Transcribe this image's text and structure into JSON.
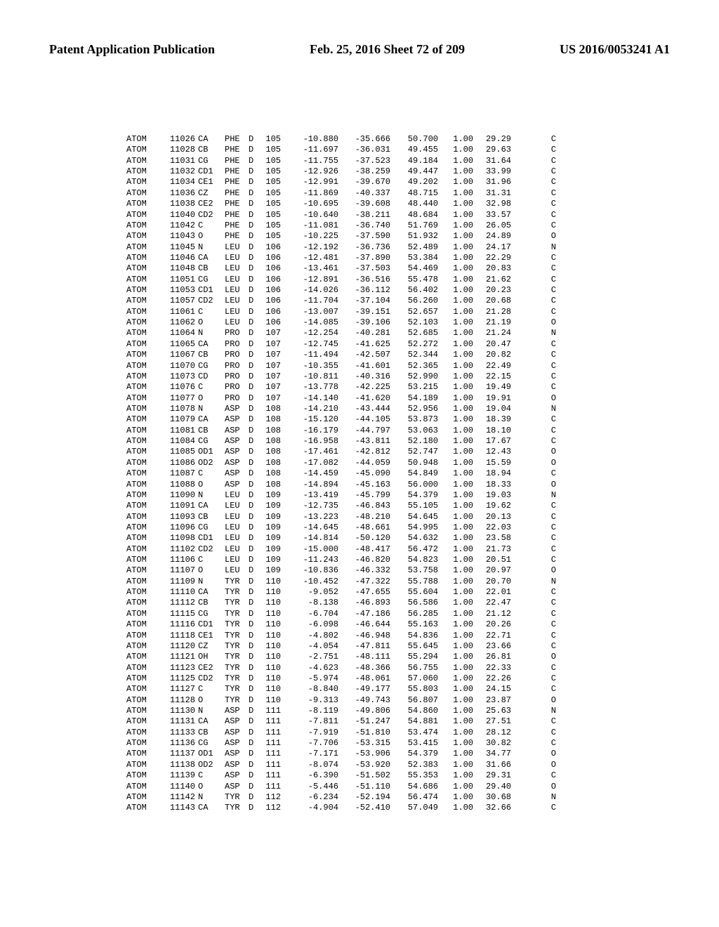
{
  "header": {
    "left": "Patent Application Publication",
    "center": "Feb. 25, 2016  Sheet 72 of 209",
    "right": "US 2016/0053241 A1"
  },
  "records": [
    {
      "rec": "ATOM",
      "ser": 11026,
      "name": "CA",
      "res": "PHE",
      "ch": "D",
      "seq": 105,
      "x": -10.88,
      "y": -35.666,
      "z": 50.7,
      "occ": 1.0,
      "bf": 29.29,
      "el": "C"
    },
    {
      "rec": "ATOM",
      "ser": 11028,
      "name": "CB",
      "res": "PHE",
      "ch": "D",
      "seq": 105,
      "x": -11.697,
      "y": -36.031,
      "z": 49.455,
      "occ": 1.0,
      "bf": 29.63,
      "el": "C"
    },
    {
      "rec": "ATOM",
      "ser": 11031,
      "name": "CG",
      "res": "PHE",
      "ch": "D",
      "seq": 105,
      "x": -11.755,
      "y": -37.523,
      "z": 49.184,
      "occ": 1.0,
      "bf": 31.64,
      "el": "C"
    },
    {
      "rec": "ATOM",
      "ser": 11032,
      "name": "CD1",
      "res": "PHE",
      "ch": "D",
      "seq": 105,
      "x": -12.926,
      "y": -38.259,
      "z": 49.447,
      "occ": 1.0,
      "bf": 33.99,
      "el": "C"
    },
    {
      "rec": "ATOM",
      "ser": 11034,
      "name": "CE1",
      "res": "PHE",
      "ch": "D",
      "seq": 105,
      "x": -12.991,
      "y": -39.67,
      "z": 49.202,
      "occ": 1.0,
      "bf": 31.96,
      "el": "C"
    },
    {
      "rec": "ATOM",
      "ser": 11036,
      "name": "CZ",
      "res": "PHE",
      "ch": "D",
      "seq": 105,
      "x": -11.869,
      "y": -40.337,
      "z": 48.715,
      "occ": 1.0,
      "bf": 31.31,
      "el": "C"
    },
    {
      "rec": "ATOM",
      "ser": 11038,
      "name": "CE2",
      "res": "PHE",
      "ch": "D",
      "seq": 105,
      "x": -10.695,
      "y": -39.608,
      "z": 48.44,
      "occ": 1.0,
      "bf": 32.98,
      "el": "C"
    },
    {
      "rec": "ATOM",
      "ser": 11040,
      "name": "CD2",
      "res": "PHE",
      "ch": "D",
      "seq": 105,
      "x": -10.64,
      "y": -38.211,
      "z": 48.684,
      "occ": 1.0,
      "bf": 33.57,
      "el": "C"
    },
    {
      "rec": "ATOM",
      "ser": 11042,
      "name": "C",
      "res": "PHE",
      "ch": "D",
      "seq": 105,
      "x": -11.081,
      "y": -36.74,
      "z": 51.769,
      "occ": 1.0,
      "bf": 26.05,
      "el": "C"
    },
    {
      "rec": "ATOM",
      "ser": 11043,
      "name": "O",
      "res": "PHE",
      "ch": "D",
      "seq": 105,
      "x": -10.225,
      "y": -37.59,
      "z": 51.932,
      "occ": 1.0,
      "bf": 24.89,
      "el": "O"
    },
    {
      "rec": "ATOM",
      "ser": 11045,
      "name": "N",
      "res": "LEU",
      "ch": "D",
      "seq": 106,
      "x": -12.192,
      "y": -36.736,
      "z": 52.489,
      "occ": 1.0,
      "bf": 24.17,
      "el": "N"
    },
    {
      "rec": "ATOM",
      "ser": 11046,
      "name": "CA",
      "res": "LEU",
      "ch": "D",
      "seq": 106,
      "x": -12.481,
      "y": -37.89,
      "z": 53.384,
      "occ": 1.0,
      "bf": 22.29,
      "el": "C"
    },
    {
      "rec": "ATOM",
      "ser": 11048,
      "name": "CB",
      "res": "LEU",
      "ch": "D",
      "seq": 106,
      "x": -13.461,
      "y": -37.503,
      "z": 54.469,
      "occ": 1.0,
      "bf": 20.83,
      "el": "C"
    },
    {
      "rec": "ATOM",
      "ser": 11051,
      "name": "CG",
      "res": "LEU",
      "ch": "D",
      "seq": 106,
      "x": -12.891,
      "y": -36.516,
      "z": 55.478,
      "occ": 1.0,
      "bf": 21.62,
      "el": "C"
    },
    {
      "rec": "ATOM",
      "ser": 11053,
      "name": "CD1",
      "res": "LEU",
      "ch": "D",
      "seq": 106,
      "x": -14.026,
      "y": -36.112,
      "z": 56.402,
      "occ": 1.0,
      "bf": 20.23,
      "el": "C"
    },
    {
      "rec": "ATOM",
      "ser": 11057,
      "name": "CD2",
      "res": "LEU",
      "ch": "D",
      "seq": 106,
      "x": -11.704,
      "y": -37.104,
      "z": 56.26,
      "occ": 1.0,
      "bf": 20.68,
      "el": "C"
    },
    {
      "rec": "ATOM",
      "ser": 11061,
      "name": "C",
      "res": "LEU",
      "ch": "D",
      "seq": 106,
      "x": -13.007,
      "y": -39.151,
      "z": 52.657,
      "occ": 1.0,
      "bf": 21.28,
      "el": "C"
    },
    {
      "rec": "ATOM",
      "ser": 11062,
      "name": "O",
      "res": "LEU",
      "ch": "D",
      "seq": 106,
      "x": -14.085,
      "y": -39.106,
      "z": 52.103,
      "occ": 1.0,
      "bf": 21.19,
      "el": "O"
    },
    {
      "rec": "ATOM",
      "ser": 11064,
      "name": "N",
      "res": "PRO",
      "ch": "D",
      "seq": 107,
      "x": -12.254,
      "y": -40.281,
      "z": 52.685,
      "occ": 1.0,
      "bf": 21.24,
      "el": "N"
    },
    {
      "rec": "ATOM",
      "ser": 11065,
      "name": "CA",
      "res": "PRO",
      "ch": "D",
      "seq": 107,
      "x": -12.745,
      "y": -41.625,
      "z": 52.272,
      "occ": 1.0,
      "bf": 20.47,
      "el": "C"
    },
    {
      "rec": "ATOM",
      "ser": 11067,
      "name": "CB",
      "res": "PRO",
      "ch": "D",
      "seq": 107,
      "x": -11.494,
      "y": -42.507,
      "z": 52.344,
      "occ": 1.0,
      "bf": 20.82,
      "el": "C"
    },
    {
      "rec": "ATOM",
      "ser": 11070,
      "name": "CG",
      "res": "PRO",
      "ch": "D",
      "seq": 107,
      "x": -10.355,
      "y": -41.601,
      "z": 52.365,
      "occ": 1.0,
      "bf": 22.49,
      "el": "C"
    },
    {
      "rec": "ATOM",
      "ser": 11073,
      "name": "CD",
      "res": "PRO",
      "ch": "D",
      "seq": 107,
      "x": -10.811,
      "y": -40.316,
      "z": 52.99,
      "occ": 1.0,
      "bf": 22.15,
      "el": "C"
    },
    {
      "rec": "ATOM",
      "ser": 11076,
      "name": "C",
      "res": "PRO",
      "ch": "D",
      "seq": 107,
      "x": -13.778,
      "y": -42.225,
      "z": 53.215,
      "occ": 1.0,
      "bf": 19.49,
      "el": "C"
    },
    {
      "rec": "ATOM",
      "ser": 11077,
      "name": "O",
      "res": "PRO",
      "ch": "D",
      "seq": 107,
      "x": -14.14,
      "y": -41.62,
      "z": 54.189,
      "occ": 1.0,
      "bf": 19.91,
      "el": "O"
    },
    {
      "rec": "ATOM",
      "ser": 11078,
      "name": "N",
      "res": "ASP",
      "ch": "D",
      "seq": 108,
      "x": -14.21,
      "y": -43.444,
      "z": 52.956,
      "occ": 1.0,
      "bf": 19.04,
      "el": "N"
    },
    {
      "rec": "ATOM",
      "ser": 11079,
      "name": "CA",
      "res": "ASP",
      "ch": "D",
      "seq": 108,
      "x": -15.12,
      "y": -44.105,
      "z": 53.873,
      "occ": 1.0,
      "bf": 18.39,
      "el": "C"
    },
    {
      "rec": "ATOM",
      "ser": 11081,
      "name": "CB",
      "res": "ASP",
      "ch": "D",
      "seq": 108,
      "x": -16.179,
      "y": -44.797,
      "z": 53.063,
      "occ": 1.0,
      "bf": 18.1,
      "el": "C"
    },
    {
      "rec": "ATOM",
      "ser": 11084,
      "name": "CG",
      "res": "ASP",
      "ch": "D",
      "seq": 108,
      "x": -16.958,
      "y": -43.811,
      "z": 52.18,
      "occ": 1.0,
      "bf": 17.67,
      "el": "C"
    },
    {
      "rec": "ATOM",
      "ser": 11085,
      "name": "OD1",
      "res": "ASP",
      "ch": "D",
      "seq": 108,
      "x": -17.461,
      "y": -42.812,
      "z": 52.747,
      "occ": 1.0,
      "bf": 12.43,
      "el": "O"
    },
    {
      "rec": "ATOM",
      "ser": 11086,
      "name": "OD2",
      "res": "ASP",
      "ch": "D",
      "seq": 108,
      "x": -17.082,
      "y": -44.059,
      "z": 50.948,
      "occ": 1.0,
      "bf": 15.59,
      "el": "O"
    },
    {
      "rec": "ATOM",
      "ser": 11087,
      "name": "C",
      "res": "ASP",
      "ch": "D",
      "seq": 108,
      "x": -14.459,
      "y": -45.09,
      "z": 54.849,
      "occ": 1.0,
      "bf": 18.94,
      "el": "C"
    },
    {
      "rec": "ATOM",
      "ser": 11088,
      "name": "O",
      "res": "ASP",
      "ch": "D",
      "seq": 108,
      "x": -14.894,
      "y": -45.163,
      "z": 56.0,
      "occ": 1.0,
      "bf": 18.33,
      "el": "O"
    },
    {
      "rec": "ATOM",
      "ser": 11090,
      "name": "N",
      "res": "LEU",
      "ch": "D",
      "seq": 109,
      "x": -13.419,
      "y": -45.799,
      "z": 54.379,
      "occ": 1.0,
      "bf": 19.03,
      "el": "N"
    },
    {
      "rec": "ATOM",
      "ser": 11091,
      "name": "CA",
      "res": "LEU",
      "ch": "D",
      "seq": 109,
      "x": -12.735,
      "y": -46.843,
      "z": 55.105,
      "occ": 1.0,
      "bf": 19.62,
      "el": "C"
    },
    {
      "rec": "ATOM",
      "ser": 11093,
      "name": "CB",
      "res": "LEU",
      "ch": "D",
      "seq": 109,
      "x": -13.223,
      "y": -48.21,
      "z": 54.645,
      "occ": 1.0,
      "bf": 20.13,
      "el": "C"
    },
    {
      "rec": "ATOM",
      "ser": 11096,
      "name": "CG",
      "res": "LEU",
      "ch": "D",
      "seq": 109,
      "x": -14.645,
      "y": -48.661,
      "z": 54.995,
      "occ": 1.0,
      "bf": 22.03,
      "el": "C"
    },
    {
      "rec": "ATOM",
      "ser": 11098,
      "name": "CD1",
      "res": "LEU",
      "ch": "D",
      "seq": 109,
      "x": -14.814,
      "y": -50.12,
      "z": 54.632,
      "occ": 1.0,
      "bf": 23.58,
      "el": "C"
    },
    {
      "rec": "ATOM",
      "ser": 11102,
      "name": "CD2",
      "res": "LEU",
      "ch": "D",
      "seq": 109,
      "x": -15.0,
      "y": -48.417,
      "z": 56.472,
      "occ": 1.0,
      "bf": 21.73,
      "el": "C"
    },
    {
      "rec": "ATOM",
      "ser": 11106,
      "name": "C",
      "res": "LEU",
      "ch": "D",
      "seq": 109,
      "x": -11.243,
      "y": -46.82,
      "z": 54.823,
      "occ": 1.0,
      "bf": 20.51,
      "el": "C"
    },
    {
      "rec": "ATOM",
      "ser": 11107,
      "name": "O",
      "res": "LEU",
      "ch": "D",
      "seq": 109,
      "x": -10.836,
      "y": -46.332,
      "z": 53.758,
      "occ": 1.0,
      "bf": 20.97,
      "el": "O"
    },
    {
      "rec": "ATOM",
      "ser": 11109,
      "name": "N",
      "res": "TYR",
      "ch": "D",
      "seq": 110,
      "x": -10.452,
      "y": -47.322,
      "z": 55.788,
      "occ": 1.0,
      "bf": 20.7,
      "el": "N"
    },
    {
      "rec": "ATOM",
      "ser": 11110,
      "name": "CA",
      "res": "TYR",
      "ch": "D",
      "seq": 110,
      "x": -9.052,
      "y": -47.655,
      "z": 55.604,
      "occ": 1.0,
      "bf": 22.01,
      "el": "C"
    },
    {
      "rec": "ATOM",
      "ser": 11112,
      "name": "CB",
      "res": "TYR",
      "ch": "D",
      "seq": 110,
      "x": -8.138,
      "y": -46.893,
      "z": 56.586,
      "occ": 1.0,
      "bf": 22.47,
      "el": "C"
    },
    {
      "rec": "ATOM",
      "ser": 11115,
      "name": "CG",
      "res": "TYR",
      "ch": "D",
      "seq": 110,
      "x": -6.704,
      "y": -47.186,
      "z": 56.285,
      "occ": 1.0,
      "bf": 21.12,
      "el": "C"
    },
    {
      "rec": "ATOM",
      "ser": 11116,
      "name": "CD1",
      "res": "TYR",
      "ch": "D",
      "seq": 110,
      "x": -6.098,
      "y": -46.644,
      "z": 55.163,
      "occ": 1.0,
      "bf": 20.26,
      "el": "C"
    },
    {
      "rec": "ATOM",
      "ser": 11118,
      "name": "CE1",
      "res": "TYR",
      "ch": "D",
      "seq": 110,
      "x": -4.802,
      "y": -46.948,
      "z": 54.836,
      "occ": 1.0,
      "bf": 22.71,
      "el": "C"
    },
    {
      "rec": "ATOM",
      "ser": 11120,
      "name": "CZ",
      "res": "TYR",
      "ch": "D",
      "seq": 110,
      "x": -4.054,
      "y": -47.811,
      "z": 55.645,
      "occ": 1.0,
      "bf": 23.66,
      "el": "C"
    },
    {
      "rec": "ATOM",
      "ser": 11121,
      "name": "OH",
      "res": "TYR",
      "ch": "D",
      "seq": 110,
      "x": -2.751,
      "y": -48.111,
      "z": 55.294,
      "occ": 1.0,
      "bf": 26.81,
      "el": "O"
    },
    {
      "rec": "ATOM",
      "ser": 11123,
      "name": "CE2",
      "res": "TYR",
      "ch": "D",
      "seq": 110,
      "x": -4.623,
      "y": -48.366,
      "z": 56.755,
      "occ": 1.0,
      "bf": 22.33,
      "el": "C"
    },
    {
      "rec": "ATOM",
      "ser": 11125,
      "name": "CD2",
      "res": "TYR",
      "ch": "D",
      "seq": 110,
      "x": -5.974,
      "y": -48.061,
      "z": 57.06,
      "occ": 1.0,
      "bf": 22.26,
      "el": "C"
    },
    {
      "rec": "ATOM",
      "ser": 11127,
      "name": "C",
      "res": "TYR",
      "ch": "D",
      "seq": 110,
      "x": -8.84,
      "y": -49.177,
      "z": 55.803,
      "occ": 1.0,
      "bf": 24.15,
      "el": "C"
    },
    {
      "rec": "ATOM",
      "ser": 11128,
      "name": "O",
      "res": "TYR",
      "ch": "D",
      "seq": 110,
      "x": -9.313,
      "y": -49.743,
      "z": 56.807,
      "occ": 1.0,
      "bf": 23.87,
      "el": "O"
    },
    {
      "rec": "ATOM",
      "ser": 11130,
      "name": "N",
      "res": "ASP",
      "ch": "D",
      "seq": 111,
      "x": -8.119,
      "y": -49.806,
      "z": 54.86,
      "occ": 1.0,
      "bf": 25.63,
      "el": "N"
    },
    {
      "rec": "ATOM",
      "ser": 11131,
      "name": "CA",
      "res": "ASP",
      "ch": "D",
      "seq": 111,
      "x": -7.811,
      "y": -51.247,
      "z": 54.881,
      "occ": 1.0,
      "bf": 27.51,
      "el": "C"
    },
    {
      "rec": "ATOM",
      "ser": 11133,
      "name": "CB",
      "res": "ASP",
      "ch": "D",
      "seq": 111,
      "x": -7.919,
      "y": -51.81,
      "z": 53.474,
      "occ": 1.0,
      "bf": 28.12,
      "el": "C"
    },
    {
      "rec": "ATOM",
      "ser": 11136,
      "name": "CG",
      "res": "ASP",
      "ch": "D",
      "seq": 111,
      "x": -7.706,
      "y": -53.315,
      "z": 53.415,
      "occ": 1.0,
      "bf": 30.82,
      "el": "C"
    },
    {
      "rec": "ATOM",
      "ser": 11137,
      "name": "OD1",
      "res": "ASP",
      "ch": "D",
      "seq": 111,
      "x": -7.171,
      "y": -53.906,
      "z": 54.379,
      "occ": 1.0,
      "bf": 34.77,
      "el": "O"
    },
    {
      "rec": "ATOM",
      "ser": 11138,
      "name": "OD2",
      "res": "ASP",
      "ch": "D",
      "seq": 111,
      "x": -8.074,
      "y": -53.92,
      "z": 52.383,
      "occ": 1.0,
      "bf": 31.66,
      "el": "O"
    },
    {
      "rec": "ATOM",
      "ser": 11139,
      "name": "C",
      "res": "ASP",
      "ch": "D",
      "seq": 111,
      "x": -6.39,
      "y": -51.502,
      "z": 55.353,
      "occ": 1.0,
      "bf": 29.31,
      "el": "C"
    },
    {
      "rec": "ATOM",
      "ser": 11140,
      "name": "O",
      "res": "ASP",
      "ch": "D",
      "seq": 111,
      "x": -5.446,
      "y": -51.11,
      "z": 54.686,
      "occ": 1.0,
      "bf": 29.4,
      "el": "O"
    },
    {
      "rec": "ATOM",
      "ser": 11142,
      "name": "N",
      "res": "TYR",
      "ch": "D",
      "seq": 112,
      "x": -6.234,
      "y": -52.194,
      "z": 56.474,
      "occ": 1.0,
      "bf": 30.68,
      "el": "N"
    },
    {
      "rec": "ATOM",
      "ser": 11143,
      "name": "CA",
      "res": "TYR",
      "ch": "D",
      "seq": 112,
      "x": -4.904,
      "y": -52.41,
      "z": 57.049,
      "occ": 1.0,
      "bf": 32.66,
      "el": "C"
    }
  ]
}
